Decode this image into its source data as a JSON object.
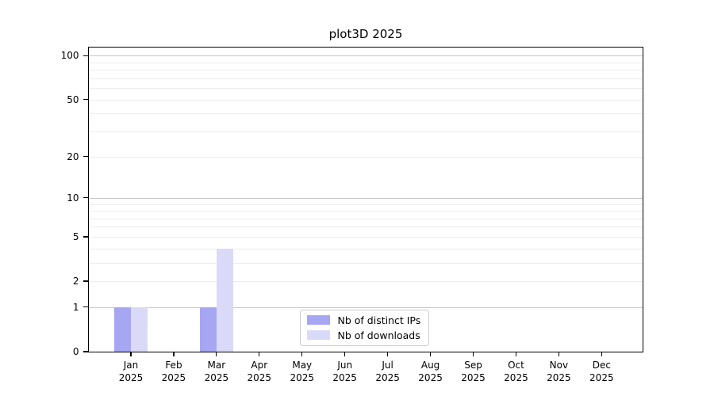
{
  "title": "plot3D 2025",
  "chart_data": {
    "type": "bar",
    "title": "plot3D 2025",
    "categories": [
      "Jan 2025",
      "Feb 2025",
      "Mar 2025",
      "Apr 2025",
      "May 2025",
      "Jun 2025",
      "Jul 2025",
      "Aug 2025",
      "Sep 2025",
      "Oct 2025",
      "Nov 2025",
      "Dec 2025"
    ],
    "x_tick_months": [
      "Jan",
      "Feb",
      "Mar",
      "Apr",
      "May",
      "Jun",
      "Jul",
      "Aug",
      "Sep",
      "Oct",
      "Nov",
      "Dec"
    ],
    "x_tick_year": "2025",
    "series": [
      {
        "name": "Nb of distinct IPs",
        "color": "#a6a6f2",
        "values": [
          1,
          0,
          1,
          0,
          0,
          0,
          0,
          0,
          0,
          0,
          0,
          0
        ]
      },
      {
        "name": "Nb of downloads",
        "color": "#dadaf8",
        "values": [
          1,
          0,
          4,
          0,
          0,
          0,
          0,
          0,
          0,
          0,
          0,
          0
        ]
      }
    ],
    "xlabel": "",
    "ylabel": "",
    "y_axis": {
      "scale": "log1p",
      "tick_values": [
        0,
        1,
        2,
        5,
        10,
        20,
        50,
        100
      ],
      "tick_labels": [
        "0",
        "1",
        "2",
        "5",
        "10",
        "20",
        "50",
        "100"
      ],
      "ylim": [
        0,
        115
      ]
    },
    "grid": {
      "major_values": [
        1,
        10,
        100
      ],
      "minor_values": [
        2,
        3,
        4,
        5,
        6,
        7,
        8,
        9,
        20,
        30,
        40,
        50,
        60,
        70,
        80,
        90
      ],
      "major_color": "#c8c8c8",
      "minor_color": "#ececec"
    },
    "legend": {
      "position": "lower center",
      "items": [
        {
          "label": "Nb of distinct IPs",
          "color": "#a6a6f2"
        },
        {
          "label": "Nb of downloads",
          "color": "#dadaf8"
        }
      ]
    },
    "colors": {
      "frame": "#000000",
      "text": "#000000",
      "background": "#ffffff"
    }
  }
}
